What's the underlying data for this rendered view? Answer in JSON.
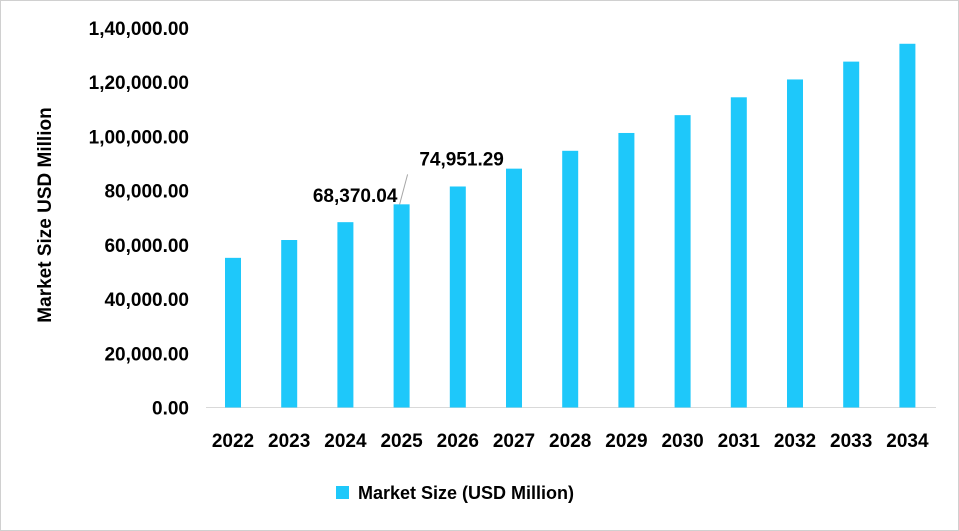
{
  "chart_data": {
    "type": "bar",
    "title": "",
    "xlabel": "",
    "ylabel": "Market Size USD Million",
    "ylim": [
      0,
      140000
    ],
    "yticks": [
      "0.00",
      "20,000.00",
      "40,000.00",
      "60,000.00",
      "80,000.00",
      "1,00,000.00",
      "1,20,000.00",
      "1,40,000.00"
    ],
    "ytick_values": [
      0,
      20000,
      40000,
      60000,
      80000,
      100000,
      120000,
      140000
    ],
    "categories": [
      "2022",
      "2023",
      "2024",
      "2025",
      "2026",
      "2027",
      "2028",
      "2029",
      "2030",
      "2031",
      "2032",
      "2033",
      "2034"
    ],
    "series": [
      {
        "name": "Market Size (USD Million)",
        "color": "#1ec8fa",
        "values": [
          55208,
          61789,
          68370.04,
          74951.29,
          81532,
          88113,
          94694,
          101275,
          107856,
          114437,
          121018,
          127599,
          134180
        ]
      }
    ],
    "data_labels": [
      {
        "category": "2024",
        "text": "68,370.04"
      },
      {
        "category": "2025",
        "text": "74,951.29"
      }
    ],
    "grid": false,
    "legend": "bottom"
  }
}
